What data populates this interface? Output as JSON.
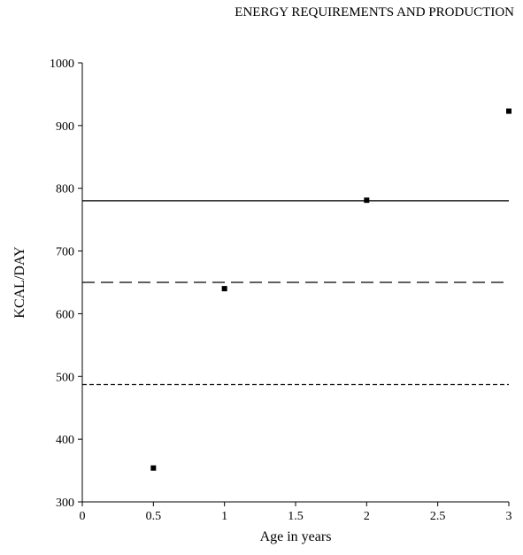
{
  "header": {
    "running_title": "ENERGY REQUIREMENTS AND PRODUCTION"
  },
  "chart_data": {
    "type": "scatter",
    "title": "",
    "xlabel": "Age in years",
    "ylabel": "KCAL/DAY",
    "xlim": [
      0,
      3
    ],
    "ylim": [
      300,
      1000
    ],
    "xticks": [
      0,
      0.5,
      1,
      1.5,
      2,
      2.5,
      3
    ],
    "xtick_labels": [
      "0",
      "0.5",
      "1",
      "1.5",
      "2",
      "2.5",
      "3"
    ],
    "yticks": [
      300,
      400,
      500,
      600,
      700,
      800,
      900,
      1000
    ],
    "ytick_labels": [
      "300",
      "400",
      "500",
      "600",
      "700",
      "800",
      "900",
      "1000"
    ],
    "grid": false,
    "legend": "none",
    "series": [
      {
        "x": [
          0.5,
          1,
          2,
          3
        ],
        "y": [
          354,
          640,
          781,
          923
        ]
      }
    ],
    "reference_lines": [
      {
        "y": 780,
        "style": "solid"
      },
      {
        "y": 650,
        "style": "long-dash"
      },
      {
        "y": 487,
        "style": "short-dash"
      }
    ],
    "colors": {
      "ink": "#000000",
      "background": "#ffffff"
    }
  }
}
